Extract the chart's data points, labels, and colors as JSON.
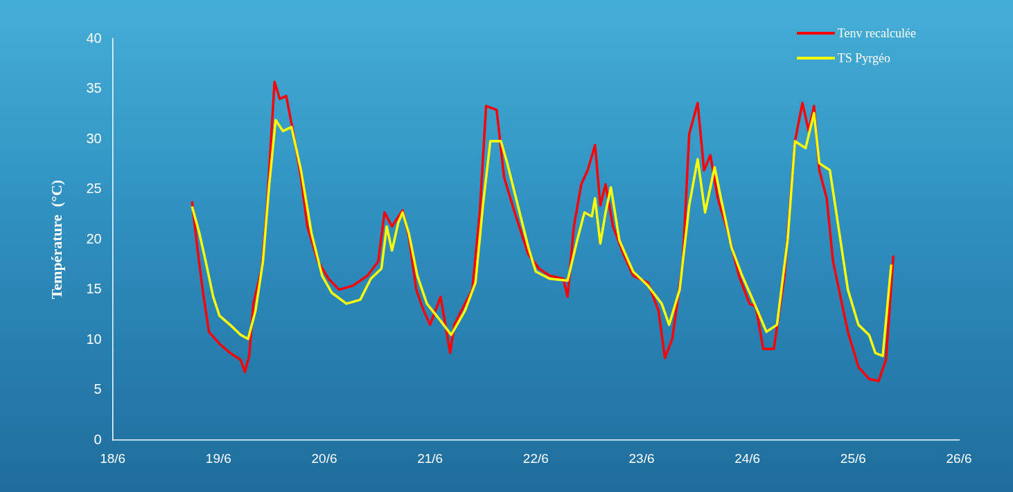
{
  "chart_data": {
    "type": "line",
    "ylabel": "Température  (°C)",
    "xlim": [
      "--06-18",
      "--06-26"
    ],
    "xticks": [
      {
        "value": "--06-18",
        "label": "18/6"
      },
      {
        "value": "--06-19",
        "label": "19/6"
      },
      {
        "value": "--06-20",
        "label": "20/6"
      },
      {
        "value": "--06-21",
        "label": "21/6"
      },
      {
        "value": "--06-22",
        "label": "22/6"
      },
      {
        "value": "--06-23",
        "label": "23/6"
      },
      {
        "value": "--06-24",
        "label": "24/6"
      },
      {
        "value": "--06-25",
        "label": "25/6"
      },
      {
        "value": "--06-26",
        "label": "26/6"
      }
    ],
    "ylim": [
      0,
      40
    ],
    "yticks": [
      0,
      5,
      10,
      15,
      20,
      25,
      30,
      35,
      40
    ],
    "grid": false,
    "legend": "top right",
    "marker": "none",
    "line_style": "solid",
    "series": [
      {
        "name": "Tenv recalculée",
        "color": "#ff0000",
        "x": [
          "--06-18T18:00",
          "--06-18T19:12",
          "--06-18T20:24",
          "--06-18T21:50",
          "--06-19T00:14",
          "--06-19T02:38",
          "--06-19T05:02",
          "--06-19T06:00",
          "--06-19T06:58",
          "--06-19T07:55",
          "--06-19T09:50",
          "--06-19T11:02",
          "--06-19T12:43",
          "--06-19T13:55",
          "--06-19T15:22",
          "--06-19T17:02",
          "--06-19T18:43",
          "--06-19T20:10",
          "--06-19T22:34",
          "--06-20T00:58",
          "--06-20T03:22",
          "--06-20T06:29",
          "--06-20T09:50",
          "--06-20T12:14",
          "--06-20T13:41",
          "--06-20T15:22",
          "--06-20T17:46",
          "--06-20T19:12",
          "--06-20T20:53",
          "--06-20T22:34",
          "--06-21T00:00",
          "--06-21T02:24",
          "--06-21T04:34",
          "--06-21T05:31",
          "--06-21T07:55",
          "--06-21T09:36",
          "--06-21T11:17",
          "--06-21T12:43",
          "--06-21T15:07",
          "--06-21T16:48",
          "--06-21T19:12",
          "--06-21T22:19",
          "--06-22T00:43",
          "--06-22T03:07",
          "--06-22T06:14",
          "--06-22T07:12",
          "--06-22T08:38",
          "--06-22T10:19",
          "--06-22T11:46",
          "--06-22T13:26",
          "--06-22T14:38",
          "--06-22T15:50",
          "--06-22T17:31",
          "--06-22T19:55",
          "--06-22T22:05",
          "--06-23T01:26",
          "--06-23T03:50",
          "--06-23T05:17",
          "--06-23T06:58",
          "--06-23T09:22",
          "--06-23T10:48",
          "--06-23T12:43",
          "--06-23T14:10",
          "--06-23T15:36",
          "--06-23T17:17",
          "--06-23T19:41",
          "--06-23T22:05",
          "--06-24T00:29",
          "--06-24T01:55",
          "--06-24T03:36",
          "--06-24T06:00",
          "--06-24T08:24",
          "--06-24T10:48",
          "--06-24T12:29",
          "--06-24T13:55",
          "--06-24T15:07",
          "--06-24T16:19",
          "--06-24T18:00",
          "--06-24T19:26",
          "--06-24T21:07",
          "--06-24T22:48",
          "--06-25T01:12",
          "--06-25T03:36",
          "--06-25T05:46",
          "--06-25T07:26",
          "--06-25T09:07"
        ],
        "values": [
          23.8,
          19.2,
          15.0,
          10.8,
          9.6,
          8.7,
          8.0,
          6.8,
          8.4,
          13.6,
          17.1,
          23.4,
          35.7,
          34.0,
          34.3,
          30.5,
          26.2,
          21.3,
          17.8,
          16.1,
          15.0,
          15.4,
          16.4,
          17.8,
          22.7,
          21.3,
          22.9,
          20.3,
          15.0,
          12.9,
          11.5,
          14.3,
          8.7,
          11.5,
          13.6,
          15.0,
          22.7,
          33.3,
          32.9,
          26.2,
          22.7,
          18.5,
          17.1,
          16.4,
          16.1,
          14.3,
          21.3,
          25.5,
          26.9,
          29.4,
          23.4,
          25.5,
          21.3,
          18.5,
          16.4,
          15.7,
          12.9,
          8.2,
          10.1,
          17.8,
          30.5,
          33.6,
          26.9,
          28.4,
          24.1,
          20.6,
          16.4,
          13.6,
          13.3,
          9.1,
          9.1,
          16.4,
          29.8,
          33.6,
          30.8,
          33.3,
          26.9,
          24.1,
          17.8,
          14.3,
          10.8,
          7.3,
          6.1,
          5.9,
          8.0,
          18.4
        ]
      },
      {
        "name": "TS Pyrgéo",
        "color": "#ffff00",
        "x": [
          "--06-18T18:00",
          "--06-18T19:41",
          "--06-18T21:07",
          "--06-18T22:48",
          "--06-19T00:14",
          "--06-19T02:38",
          "--06-19T05:02",
          "--06-19T06:43",
          "--06-19T08:24",
          "--06-19T10:05",
          "--06-19T11:31",
          "--06-19T12:58",
          "--06-19T14:38",
          "--06-19T16:34",
          "--06-19T18:43",
          "--06-19T21:07",
          "--06-19T23:31",
          "--06-20T01:41",
          "--06-20T05:02",
          "--06-20T08:10",
          "--06-20T10:34",
          "--06-20T12:58",
          "--06-20T14:10",
          "--06-20T15:22",
          "--06-20T16:48",
          "--06-20T17:46",
          "--06-20T19:12",
          "--06-20T21:07",
          "--06-20T23:17",
          "--06-21T02:24",
          "--06-21T04:48",
          "--06-21T07:55",
          "--06-21T10:19",
          "--06-21T12:00",
          "--06-21T13:41",
          "--06-21T16:05",
          "--06-21T17:31",
          "--06-21T19:55",
          "--06-21T22:19",
          "--06-22T00:00",
          "--06-22T03:07",
          "--06-22T07:12",
          "--06-22T09:22",
          "--06-22T11:02",
          "--06-22T12:43",
          "--06-22T13:26",
          "--06-22T14:38",
          "--06-22T15:50",
          "--06-22T17:02",
          "--06-22T18:58",
          "--06-22T22:05",
          "--06-23T01:26",
          "--06-23T04:34",
          "--06-23T06:14",
          "--06-23T08:38",
          "--06-23T10:48",
          "--06-23T12:43",
          "--06-23T14:24",
          "--06-23T16:34",
          "--06-23T18:00",
          "--06-23T20:24",
          "--06-23T22:48",
          "--06-24T01:55",
          "--06-24T04:19",
          "--06-24T06:43",
          "--06-24T09:07",
          "--06-24T10:48",
          "--06-24T13:12",
          "--06-24T15:07",
          "--06-24T16:19",
          "--06-24T18:43",
          "--06-24T20:24",
          "--06-24T22:48",
          "--06-25T01:12",
          "--06-25T03:36",
          "--06-25T05:02",
          "--06-25T06:43",
          "--06-25T08:38"
        ],
        "values": [
          23.3,
          20.6,
          17.8,
          14.3,
          12.4,
          11.5,
          10.5,
          10.1,
          12.9,
          17.8,
          25.5,
          31.9,
          30.8,
          31.2,
          26.9,
          20.6,
          16.4,
          14.7,
          13.6,
          14.0,
          16.1,
          17.1,
          21.3,
          18.9,
          21.7,
          22.7,
          20.6,
          16.4,
          13.6,
          11.9,
          10.5,
          12.9,
          15.7,
          23.4,
          29.8,
          29.8,
          27.6,
          23.4,
          19.2,
          16.8,
          16.1,
          15.9,
          19.9,
          22.7,
          22.3,
          24.1,
          19.6,
          22.7,
          25.2,
          19.9,
          16.8,
          15.4,
          13.6,
          11.5,
          15.0,
          23.4,
          28.0,
          22.7,
          27.2,
          24.1,
          19.2,
          16.4,
          13.3,
          10.8,
          11.5,
          19.9,
          29.8,
          29.1,
          32.6,
          27.6,
          26.9,
          22.0,
          15.0,
          11.5,
          10.5,
          8.7,
          8.4,
          17.5
        ]
      }
    ]
  }
}
